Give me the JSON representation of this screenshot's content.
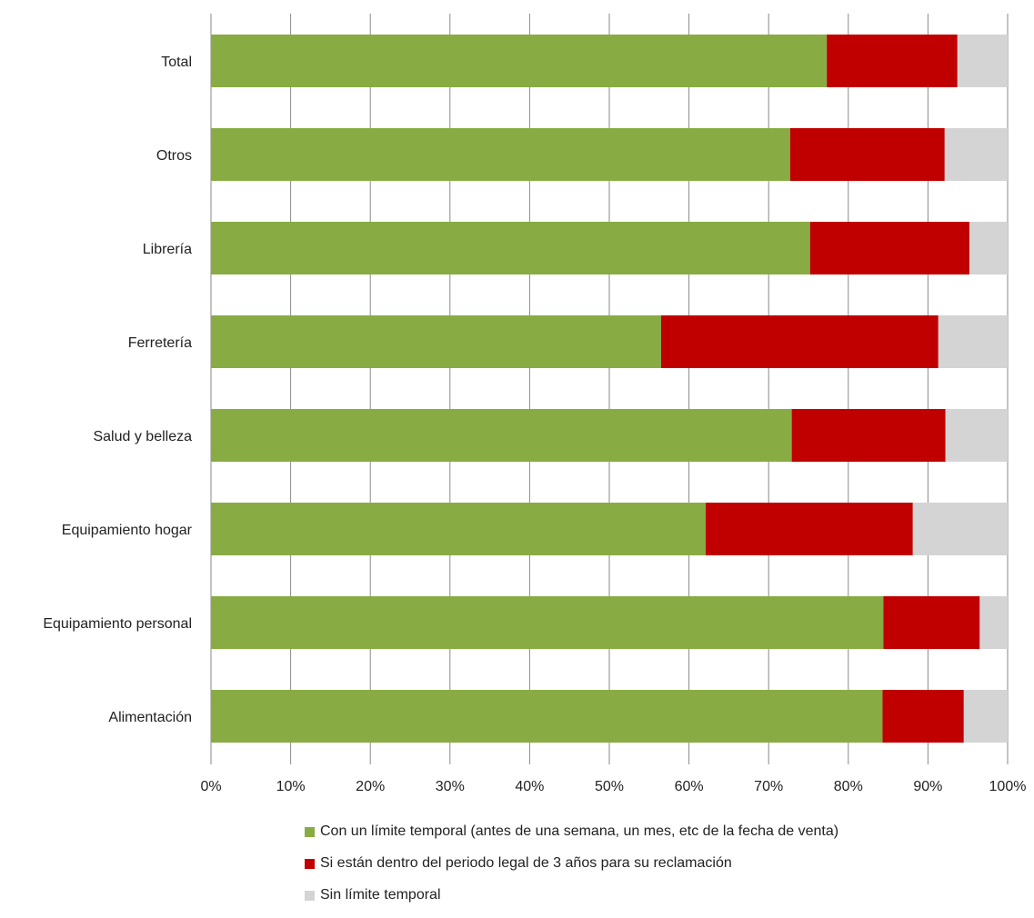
{
  "chart_data": {
    "type": "bar",
    "orientation": "horizontal",
    "stacked": "percent",
    "categories": [
      "Total",
      "Otros",
      "Librería",
      "Ferretería",
      "Salud y belleza",
      "Equipamiento hogar",
      "Equipamiento personal",
      "Alimentación"
    ],
    "series": [
      {
        "name": "Con un límite temporal (antes de una semana, un mes, etc de la fecha de venta)",
        "color": "#88ac43",
        "values": [
          77.3,
          72.7,
          75.2,
          56.5,
          72.9,
          62.1,
          84.4,
          84.3
        ]
      },
      {
        "name": "Si están dentro del periodo legal de 3 años para su reclamación",
        "color": "#c00000",
        "values": [
          16.4,
          19.4,
          20.0,
          34.8,
          19.3,
          26.0,
          12.1,
          10.2
        ]
      },
      {
        "name": "Sin límite temporal",
        "color": "#d4d4d4",
        "values": [
          6.3,
          7.9,
          4.8,
          8.7,
          7.8,
          11.9,
          3.5,
          5.5
        ]
      }
    ],
    "x_ticks": [
      "0%",
      "10%",
      "20%",
      "30%",
      "40%",
      "50%",
      "60%",
      "70%",
      "80%",
      "90%",
      "100%"
    ],
    "xlim": [
      0,
      100
    ],
    "grid": "vertical",
    "legend_position": "bottom"
  }
}
